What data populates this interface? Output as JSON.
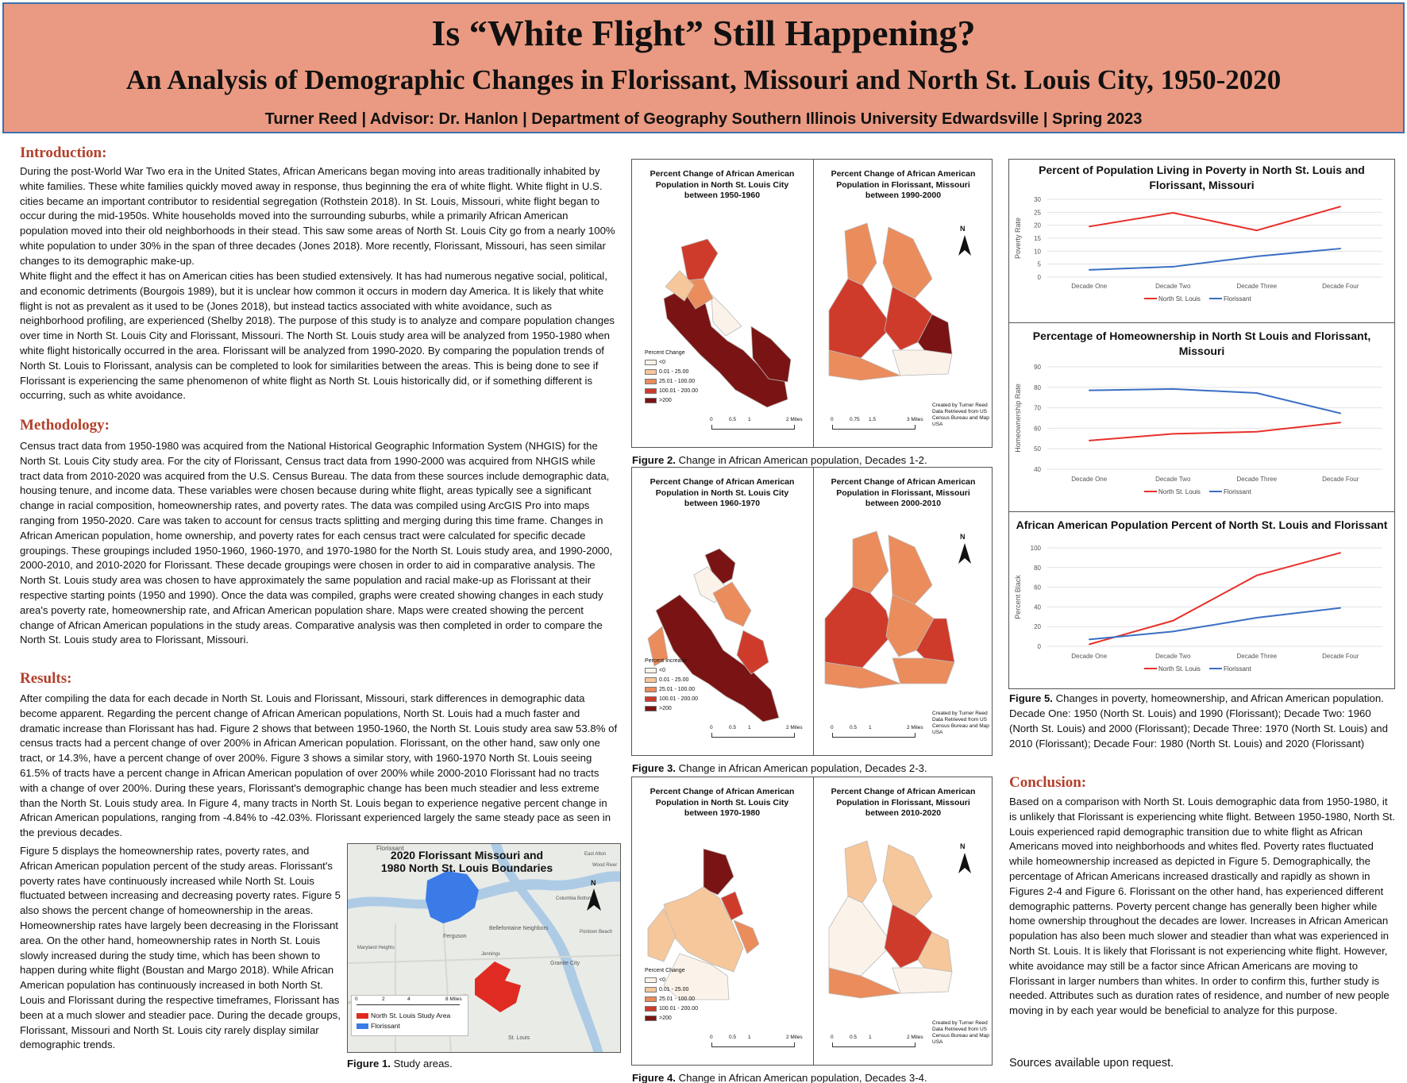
{
  "header": {
    "title": "Is “White Flight” Still Happening?",
    "subtitle": "An Analysis of Demographic Changes in Florissant, Missouri and North St. Louis City, 1950-2020",
    "authors": "Turner Reed | Advisor: Dr. Hanlon | Department of Geography Southern Illinois University Edwardsville | Spring 2023"
  },
  "intro": {
    "heading": "Introduction:",
    "p1": "During the post-World War Two era in the United States, African Americans began moving into areas traditionally inhabited by white families. These white families quickly moved away in response, thus beginning the era of white flight. White flight in U.S. cities became an important contributor to residential segregation (Rothstein 2018). In St. Louis, Missouri, white flight began to occur during the mid-1950s. White households moved into the surrounding suburbs, while a primarily African American population moved into their old neighborhoods in their stead. This saw some areas of North St. Louis City go from a nearly 100% white population to under 30% in the span of three decades (Jones 2018). More recently, Florissant, Missouri, has seen similar changes to its demographic make-up.",
    "p2": "White flight and the effect it has on American cities has been studied extensively. It has had numerous negative social, political, and economic detriments (Bourgois 1989), but it is unclear how common it occurs in modern day America. It is likely that white flight is not as prevalent as it used to be (Jones 2018), but instead tactics associated with white avoidance, such as neighborhood profiling, are experienced (Shelby 2018). The purpose of this study is to analyze and compare population changes over time in North St. Louis City and Florissant, Missouri. The North St. Louis study area will be analyzed from 1950-1980 when white flight historically occurred in the area. Florissant will be analyzed from 1990-2020. By comparing the population trends of North St. Louis to Florissant, analysis can be completed to look for similarities between the areas. This is being done to see if Florissant is experiencing the same phenomenon of white flight as North St. Louis historically did, or if something different is occurring, such as white avoidance."
  },
  "methodology": {
    "heading": "Methodology:",
    "p1": "Census tract data from 1950-1980 was acquired from the National Historical Geographic Information System (NHGIS) for the North St. Louis City study area. For the city of Florissant, Census tract data from 1990-2000 was acquired from NHGIS while tract data from 2010-2020 was acquired from the U.S. Census Bureau. The data from these sources include demographic data, housing tenure, and income data. These variables were chosen because during white flight, areas typically see a significant change in racial composition, homeownership rates, and poverty rates. The data was compiled using ArcGIS Pro into maps ranging from 1950-2020. Care was taken to account for census tracts splitting and merging during this time frame. Changes in African American population, home ownership, and poverty rates for each census tract were calculated for specific decade groupings. These groupings included 1950-1960, 1960-1970, and 1970-1980 for the North St. Louis study area, and 1990-2000, 2000-2010, and 2010-2020 for Florissant. These decade groupings were chosen in order to aid in comparative analysis. The North St. Louis study area was chosen to have approximately the same population and racial make-up as Florissant at their respective starting points (1950 and 1990). Once the data was compiled, graphs were created showing changes in each study area's poverty rate, homeownership rate, and African American population share. Maps were created showing the percent change of African American populations in the study areas. Comparative analysis was then completed in order to compare the North St. Louis study area to Florissant, Missouri."
  },
  "results": {
    "heading": "Results:",
    "p1": "After compiling the data for each decade in North St. Louis and Florissant, Missouri, stark differences in demographic data become apparent. Regarding the percent change of African American populations, North St. Louis had a much faster and dramatic increase than Florissant has had. Figure 2 shows that between 1950-1960, the North St. Louis study area saw 53.8% of census tracts had a percent change of over 200% in African American population. Florissant, on the other hand, saw only one tract, or 14.3%, have a percent change of over 200%. Figure 3 shows a similar story, with 1960-1970 North St. Louis seeing 61.5% of tracts have a percent change in African American population of over 200% while 2000-2010 Florissant had no tracts with a change of over 200%. During these years, Florissant's demographic change has been much steadier and less extreme than the North St. Louis study area. In Figure 4, many tracts in North St. Louis began to experience negative percent change in African American populations, ranging from -4.84% to -42.03%. Florissant experienced largely the same steady pace as seen in the previous decades.",
    "p2": "Figure 5 displays the homeownership rates, poverty rates, and African American population percent of the study areas. Florissant's poverty rates have continuously increased while North St. Louis fluctuated between increasing and decreasing poverty rates. Figure 5 also shows the percent change of homeownership in the areas. Homeownership rates have largely been decreasing in the Florissant area. On the other hand, homeownership rates in North St. Louis slowly increased during the study time, which has been shown to happen during white flight (Boustan and Margo 2018). While African American population has continuously increased in both North St. Louis and Florissant during the respective timeframes, Florissant has been at a much slower and steadier pace. During the decade groups, Florissant, Missouri and North St. Louis city rarely display similar demographic trends."
  },
  "figure1": {
    "title": "2020 Florissant Missouri and 1980 North St. Louis Boundaries",
    "legend": [
      "North St. Louis Study Area",
      "Florissant"
    ],
    "scale": [
      "0",
      "2",
      "4",
      "8 Miles"
    ],
    "places": [
      "Florissant",
      "Ferguson",
      "Bellefontaine Neighbors",
      "Jennings",
      "Granite City",
      "Maryland Heights",
      "St. Louis",
      "Columbia Bottom",
      "East Alton",
      "Wood River",
      "Pontoon Beach"
    ],
    "north": "N",
    "caption_label": "Figure 1.",
    "caption": " Study areas."
  },
  "maps": [
    {
      "title": "Percent Change of African American Population in North St. Louis City between 1950-1960",
      "legend_title": "Percent Change",
      "scale": [
        "0",
        "0.5",
        "1",
        "2 Miles"
      ]
    },
    {
      "title": "Percent Change of African American Population in Florissant, Missouri between 1990-2000",
      "scale": [
        "0",
        "0.75",
        "1.5",
        "3 Miles"
      ],
      "north": "N",
      "credit": "Created by Turner Reed Data Retrieved from US Census Bureau and Map USA"
    },
    {
      "title": "Percent Change of African American Population in North St. Louis City between 1960-1970",
      "legend_title": "Percent Increase",
      "scale": [
        "0",
        "0.5",
        "1",
        "2 Miles"
      ]
    },
    {
      "title": "Percent Change of African American Population in Florissant, Missouri between 2000-2010",
      "scale": [
        "0",
        "0.5",
        "1",
        "2 Miles"
      ],
      "north": "N",
      "credit": "Created by Turner Reed Data Retrieved from US Census Bureau and Map USA"
    },
    {
      "title": "Percent Change of African American Population in North St. Louis City between 1970-1980",
      "legend_title": "Percent Change",
      "scale": [
        "0",
        "0.5",
        "1",
        "2 Miles"
      ]
    },
    {
      "title": "Percent Change of African American Population in Florissant, Missouri between 2010-2020",
      "scale": [
        "0",
        "0.5",
        "1",
        "2 Miles"
      ],
      "north": "N",
      "credit": "Created by Turner Reed Data Retrieved from US Census Bureau and Map USA"
    }
  ],
  "map_legend": [
    "<0",
    "0.01 - 25.00",
    "25.01 - 100.00",
    "100.01 - 200.00",
    ">200"
  ],
  "map_colors": [
    "#fbf3ea",
    "#f6c79b",
    "#ea8c5c",
    "#cf3b2b",
    "#7a1414"
  ],
  "fig_captions": [
    {
      "label": "Figure 2.",
      "text": " Change in African American population, Decades 1-2."
    },
    {
      "label": "Figure 3.",
      "text": " Change in African American population, Decades 2-3."
    },
    {
      "label": "Figure 4.",
      "text": " Change in African American population, Decades 3-4."
    }
  ],
  "chart_data": [
    {
      "type": "line",
      "title": "Percent of Population Living in Poverty in North St. Louis and Florissant, Missouri",
      "ylabel": "Poverty Rate",
      "categories": [
        "Decade One",
        "Decade Two",
        "Decade Three",
        "Decade Four"
      ],
      "ylim": [
        0,
        30
      ],
      "yticks": [
        0,
        5,
        10,
        15,
        20,
        25,
        30
      ],
      "series": [
        {
          "name": "North St. Louis",
          "color": "#e8302a",
          "values": [
            19.5,
            24.8,
            18,
            27.2
          ]
        },
        {
          "name": "Florissant",
          "color": "#3a6fc4",
          "values": [
            2.8,
            4,
            8,
            11
          ]
        }
      ]
    },
    {
      "type": "line",
      "title": "Percentage of Homeownership in North St Louis and Florissant, Missouri",
      "ylabel": "Homeownership Rate",
      "categories": [
        "Decade One",
        "Decade Two",
        "Decade Three",
        "Decade Four"
      ],
      "ylim": [
        40,
        90
      ],
      "yticks": [
        40,
        50,
        60,
        70,
        80,
        90
      ],
      "series": [
        {
          "name": "North St. Louis",
          "color": "#e8302a",
          "values": [
            54,
            57.3,
            58.3,
            62.8
          ]
        },
        {
          "name": "Florissant",
          "color": "#3a6fc4",
          "values": [
            78.5,
            79.2,
            77.2,
            67.3
          ]
        }
      ]
    },
    {
      "type": "line",
      "title": "African American Population Percent of North St. Louis and Florissant",
      "ylabel": "Percent Black",
      "categories": [
        "Decade One",
        "Decade Two",
        "Decade Three",
        "Decade Four"
      ],
      "ylim": [
        0,
        100
      ],
      "yticks": [
        0,
        20,
        40,
        60,
        80,
        100
      ],
      "series": [
        {
          "name": "North St. Louis",
          "color": "#e8302a",
          "values": [
            2,
            26,
            72,
            95
          ]
        },
        {
          "name": "Florissant",
          "color": "#3a6fc4",
          "values": [
            7,
            15,
            29,
            39
          ]
        }
      ]
    }
  ],
  "figure5": {
    "label": "Figure 5.",
    "text": " Changes in poverty, homeownership, and African American population. Decade One: 1950 (North St. Louis) and 1990 (Florissant); Decade Two: 1960 (North St. Louis) and 2000 (Florissant); Decade Three: 1970 (North St. Louis) and 2010 (Florissant); Decade Four: 1980 (North St. Louis) and 2020 (Florissant)"
  },
  "conclusion": {
    "heading": "Conclusion:",
    "p1": "Based on a comparison with North St. Louis demographic data from 1950-1980, it is unlikely that Florissant is experiencing white flight. Between 1950-1980, North St. Louis experienced rapid demographic transition due to white flight as African Americans moved into neighborhoods and whites fled. Poverty rates fluctuated while homeownership increased as depicted in Figure 5. Demographically, the percentage of African Americans increased drastically and rapidly as shown in Figures 2-4 and Figure 6. Florissant on the other hand, has experienced different demographic patterns. Poverty percent change has generally been higher while home ownership throughout the decades are lower. Increases in African American population has also been much slower and steadier than what was experienced in North St. Louis. It is likely that Florissant is not experiencing white flight. However, white avoidance may still be a factor since African Americans are moving to Florissant in larger numbers than whites. In order to confirm this, further study is needed. Attributes such as duration rates of residence, and number of new people moving in by each year would be beneficial to analyze for this purpose.",
    "sources": "Sources available upon request."
  }
}
